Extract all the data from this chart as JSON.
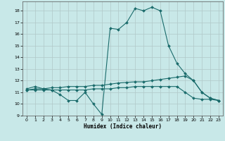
{
  "background_color": "#c8e8e8",
  "grid_color": "#b0c8c8",
  "line_color": "#1a6b6b",
  "xlabel": "Humidex (Indice chaleur)",
  "xlim": [
    -0.5,
    23.5
  ],
  "ylim": [
    9,
    18.8
  ],
  "yticks": [
    9,
    10,
    11,
    12,
    13,
    14,
    15,
    16,
    17,
    18
  ],
  "xticks": [
    0,
    1,
    2,
    3,
    4,
    5,
    6,
    7,
    8,
    9,
    10,
    11,
    12,
    13,
    14,
    15,
    16,
    17,
    18,
    19,
    20,
    21,
    22,
    23
  ],
  "line1_x": [
    0,
    1,
    2,
    3,
    4,
    5,
    6,
    7,
    8,
    9,
    10,
    11,
    12,
    13,
    14,
    15,
    16,
    17,
    18,
    19,
    20,
    21,
    22,
    23
  ],
  "line1_y": [
    11.3,
    11.5,
    11.3,
    11.2,
    10.8,
    10.3,
    10.3,
    11.0,
    10.0,
    9.1,
    16.5,
    16.4,
    17.0,
    18.2,
    18.0,
    18.3,
    18.0,
    15.0,
    13.5,
    12.6,
    12.0,
    11.0,
    10.5,
    10.3
  ],
  "line2_x": [
    0,
    1,
    2,
    3,
    4,
    5,
    6,
    7,
    8,
    9,
    10,
    11,
    12,
    13,
    14,
    15,
    16,
    17,
    18,
    19,
    20,
    21,
    22,
    23
  ],
  "line2_y": [
    11.2,
    11.3,
    11.3,
    11.4,
    11.4,
    11.5,
    11.5,
    11.5,
    11.6,
    11.6,
    11.7,
    11.8,
    11.85,
    11.9,
    11.9,
    12.0,
    12.1,
    12.2,
    12.3,
    12.4,
    12.0,
    11.0,
    10.5,
    10.3
  ],
  "line3_x": [
    0,
    1,
    2,
    3,
    4,
    5,
    6,
    7,
    8,
    9,
    10,
    11,
    12,
    13,
    14,
    15,
    16,
    17,
    18,
    19,
    20,
    21,
    22,
    23
  ],
  "line3_y": [
    11.2,
    11.2,
    11.2,
    11.2,
    11.2,
    11.2,
    11.2,
    11.2,
    11.3,
    11.3,
    11.3,
    11.4,
    11.4,
    11.5,
    11.5,
    11.5,
    11.5,
    11.5,
    11.5,
    11.0,
    10.5,
    10.4,
    10.4,
    10.3
  ]
}
